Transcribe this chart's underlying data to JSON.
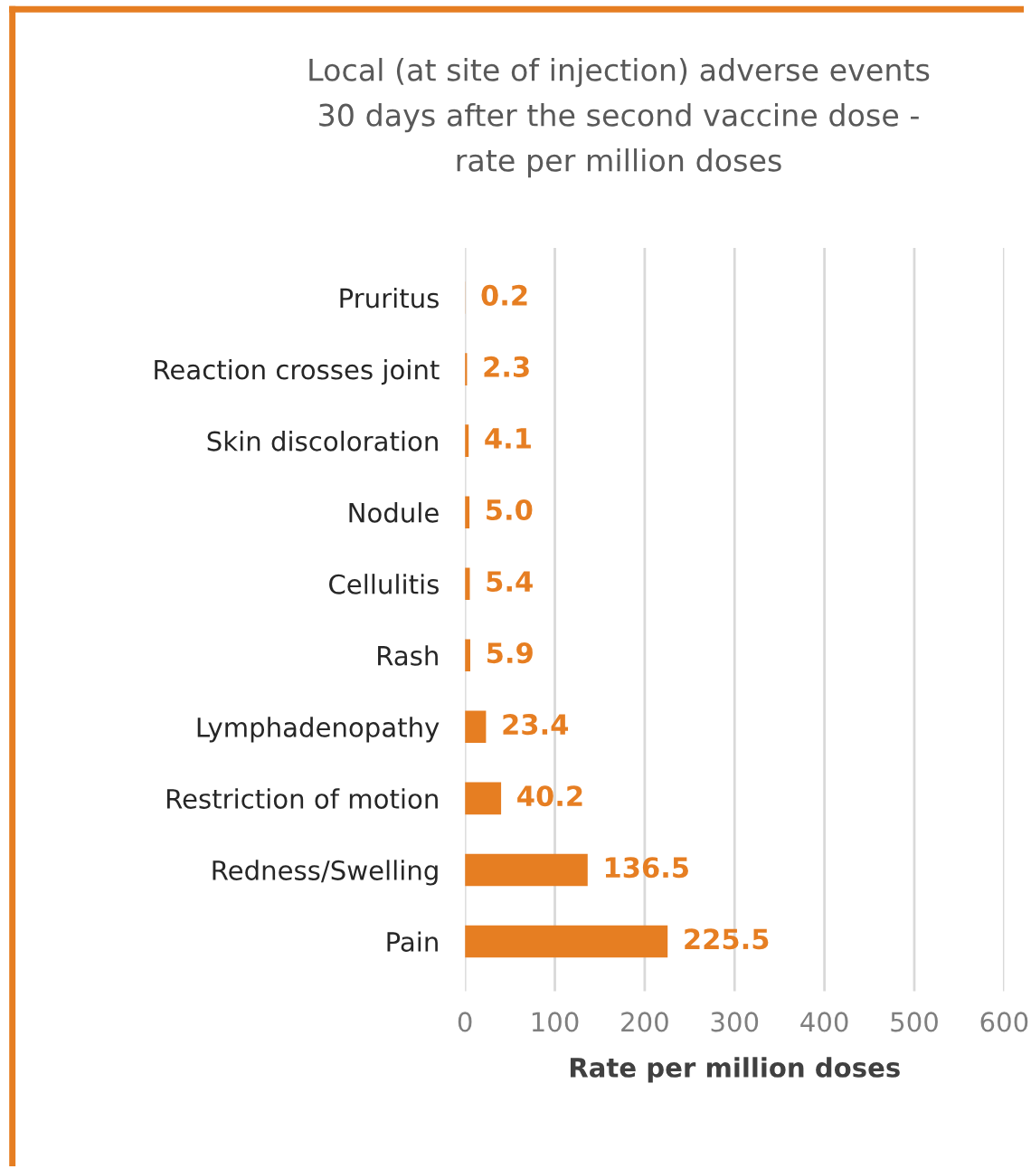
{
  "chart_data": {
    "type": "bar",
    "orientation": "horizontal",
    "title": "Local (at site of injection) adverse events\n30 days after the second vaccine dose -\nrate per million doses",
    "xlabel": "Rate per million doses",
    "categories": [
      "Pruritus",
      "Reaction crosses joint",
      "Skin discoloration",
      "Nodule",
      "Cellulitis",
      "Rash",
      "Lymphadenopathy",
      "Restriction of motion",
      "Redness/Swelling",
      "Pain"
    ],
    "values": [
      0.2,
      2.3,
      4.1,
      5.0,
      5.4,
      5.9,
      23.4,
      40.2,
      136.5,
      225.5
    ],
    "value_labels": [
      "0.2",
      "2.3",
      "4.1",
      "5.0",
      "5.4",
      "5.9",
      "23.4",
      "40.2",
      "136.5",
      "225.5"
    ],
    "color": "#e67e22",
    "xlim": [
      0,
      600
    ],
    "xticks": [
      0,
      100,
      200,
      300,
      400,
      500,
      600
    ],
    "grid": "x",
    "legend": false
  }
}
